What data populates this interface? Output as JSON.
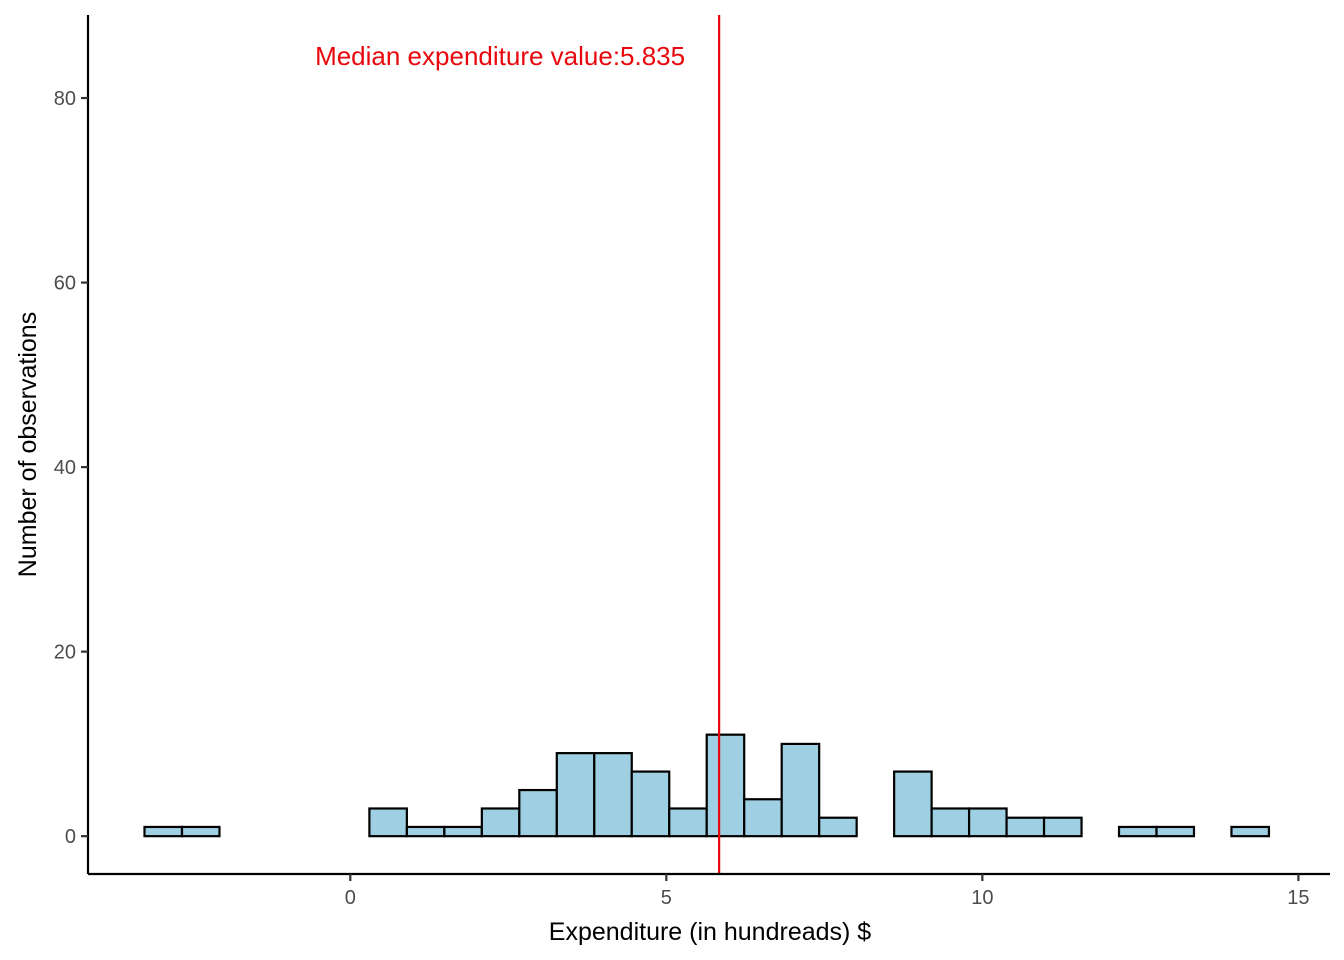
{
  "chart_data": {
    "type": "bar",
    "xlabel": "Expenditure (in hundreads) $",
    "ylabel": "Number of observations",
    "xlim": [
      -4.15,
      15.5
    ],
    "ylim": [
      -4.1,
      89
    ],
    "x_ticks": [
      {
        "value": 0,
        "label": "0"
      },
      {
        "value": 5,
        "label": "5"
      },
      {
        "value": 10,
        "label": "10"
      },
      {
        "value": 15,
        "label": "15"
      }
    ],
    "y_ticks": [
      {
        "value": 0,
        "label": "0"
      },
      {
        "value": 20,
        "label": "20"
      },
      {
        "value": 40,
        "label": "40"
      },
      {
        "value": 60,
        "label": "60"
      },
      {
        "value": 80,
        "label": "80"
      }
    ],
    "bin_width": 0.593,
    "bins_start": [
      -3.256,
      -2.663,
      -2.07,
      -1.477,
      -0.884,
      -0.291,
      0.302,
      0.895,
      1.488,
      2.081,
      2.674,
      3.267,
      3.86,
      4.453,
      5.046,
      5.639,
      6.232,
      6.825,
      7.418,
      8.011,
      8.604,
      9.197,
      9.79,
      10.383,
      10.976,
      11.569,
      12.162,
      12.755,
      13.348,
      13.941
    ],
    "counts": [
      1,
      1,
      0,
      0,
      0,
      0,
      3,
      1,
      1,
      3,
      5,
      9,
      9,
      7,
      3,
      11,
      4,
      10,
      2,
      0,
      7,
      3,
      3,
      2,
      2,
      0,
      1,
      1,
      0,
      1
    ],
    "bar_fill": "#9ecfe2",
    "bar_stroke": "#000000",
    "median": {
      "value": 5.835,
      "label": "Median expenditure value:5.835",
      "color": "#e8070d"
    },
    "grid": false
  }
}
